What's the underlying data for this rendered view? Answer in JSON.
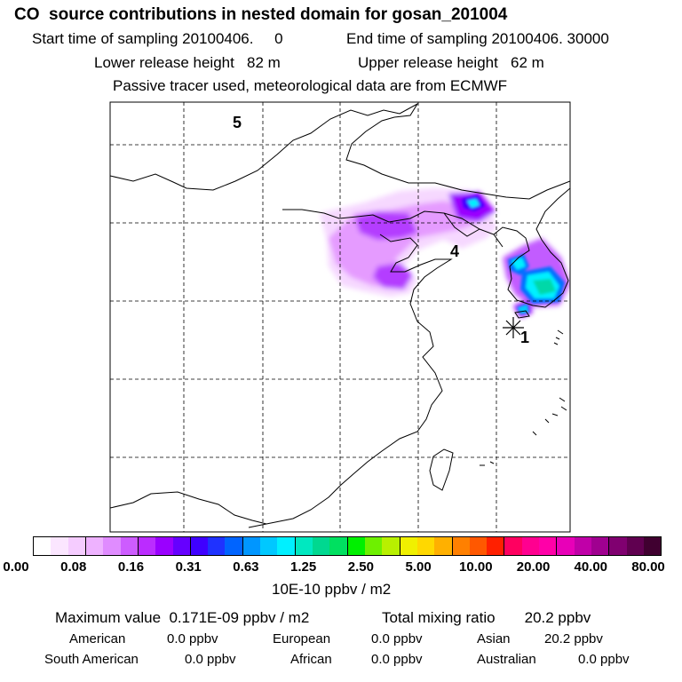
{
  "header": {
    "title": "CO  source contributions in nested domain for gosan_201004",
    "start_label": "Start time of sampling 20100406.     0",
    "end_label": "End time of sampling 20100406. 30000",
    "lower_label": "Lower release height   82 m",
    "upper_label": "Upper release height   62 m",
    "note": "Passive tracer used, meteorological data are from ECMWF"
  },
  "map": {
    "region_labels": [
      "5",
      "4",
      "1"
    ],
    "receptor_marker": "asterisk",
    "plume_colors": {
      "faint": "#f6d8ff",
      "light": "#e59bff",
      "mid": "#b43cff",
      "strong": "#7a00ff",
      "cyan": "#00f0ff",
      "teal": "#00d8a8",
      "blue": "#0070ff"
    }
  },
  "colorbar": {
    "colors": [
      "#ffffff",
      "#fbe6ff",
      "#f5ccff",
      "#eeb2ff",
      "#e08cff",
      "#cd5cff",
      "#bb2cff",
      "#9a00ff",
      "#6600ff",
      "#3f00ff",
      "#1f32ff",
      "#0064ff",
      "#0096ff",
      "#00c8ff",
      "#00f0ff",
      "#00e8c0",
      "#00d890",
      "#00e060",
      "#00f000",
      "#6ef000",
      "#b8f000",
      "#f0f000",
      "#ffd800",
      "#ffb000",
      "#ff8000",
      "#ff5800",
      "#ff2000",
      "#ff0060",
      "#ff0090",
      "#ff00a8",
      "#e800b8",
      "#c000a8",
      "#a00090",
      "#800070",
      "#600050",
      "#400030"
    ],
    "tick_labels": [
      "0.00",
      "0.08",
      "0.16",
      "0.31",
      "0.63",
      "1.25",
      "2.50",
      "5.00",
      "10.00",
      "20.00",
      "40.00",
      "80.00"
    ],
    "unit_label": "10E-10 ppbv / m2"
  },
  "stats": {
    "max_label": "Maximum value  0.171E-09 ppbv / m2",
    "total_label": "Total mixing ratio       20.2 ppbv",
    "regions": [
      {
        "name": "American",
        "value": "0.0 ppbv"
      },
      {
        "name": "European",
        "value": "0.0 ppbv"
      },
      {
        "name": "Asian",
        "value": "20.2 ppbv"
      },
      {
        "name": "South American",
        "value": "0.0 ppbv"
      },
      {
        "name": "African",
        "value": "0.0 ppbv"
      },
      {
        "name": "Australian",
        "value": "0.0 ppbv"
      }
    ]
  }
}
